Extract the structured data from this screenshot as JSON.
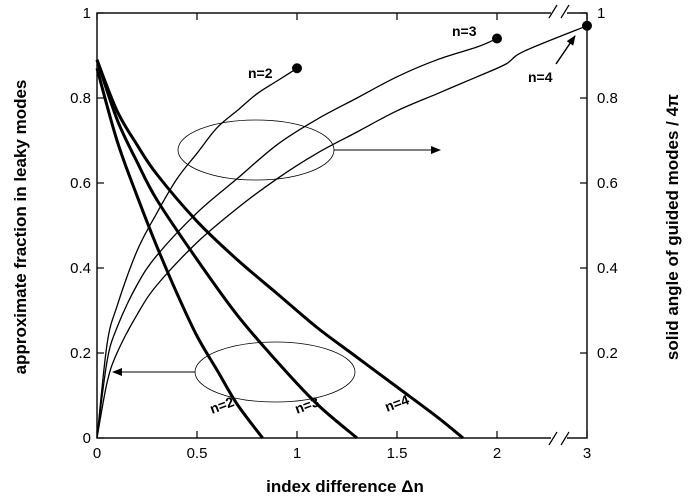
{
  "chart_data": {
    "type": "line",
    "xlabel": "index difference Δn",
    "ylabel_left": "approximate fraction in leaky modes",
    "ylabel_right": "solid angle of guided modes / 4π",
    "xlim": [
      0,
      3
    ],
    "ylim": [
      0,
      1
    ],
    "axis_break_x": [
      2.35,
      2.7
    ],
    "x_ticks": [
      "0",
      "0.5",
      "1",
      "1.5",
      "2",
      "3"
    ],
    "y_ticks_left": [
      "0",
      "0.2",
      "0.4",
      "0.6",
      "0.8",
      "1"
    ],
    "y_ticks_right": [
      "0.2",
      "0.4",
      "0.6",
      "0.8",
      "1"
    ],
    "grid": false,
    "legend": "none",
    "leaky_series": [
      {
        "name": "n=2",
        "x": [
          0,
          0.1,
          0.2,
          0.3,
          0.4,
          0.5,
          0.6,
          0.7,
          0.828
        ],
        "y": [
          0.87,
          0.7,
          0.57,
          0.45,
          0.34,
          0.24,
          0.16,
          0.08,
          0.0
        ]
      },
      {
        "name": "n=3",
        "x": [
          0,
          0.1,
          0.2,
          0.3,
          0.5,
          0.7,
          0.9,
          1.1,
          1.3
        ],
        "y": [
          0.89,
          0.75,
          0.65,
          0.56,
          0.42,
          0.29,
          0.18,
          0.08,
          0.0
        ]
      },
      {
        "name": "n=4",
        "x": [
          0,
          0.1,
          0.2,
          0.3,
          0.5,
          0.7,
          0.9,
          1.1,
          1.3,
          1.5,
          1.7,
          1.83
        ],
        "y": [
          0.89,
          0.77,
          0.69,
          0.62,
          0.51,
          0.42,
          0.34,
          0.26,
          0.19,
          0.12,
          0.05,
          0.0
        ]
      }
    ],
    "solid_angle_series": [
      {
        "name": "n=2",
        "x": [
          0,
          0.05,
          0.1,
          0.2,
          0.3,
          0.4,
          0.5,
          0.6,
          0.7,
          0.8,
          0.9,
          1.0
        ],
        "y": [
          0.0,
          0.22,
          0.31,
          0.44,
          0.53,
          0.61,
          0.67,
          0.73,
          0.77,
          0.81,
          0.84,
          0.87
        ]
      },
      {
        "name": "n=3",
        "x": [
          0,
          0.05,
          0.1,
          0.2,
          0.3,
          0.5,
          0.7,
          0.9,
          1.1,
          1.3,
          1.5,
          1.7,
          1.9,
          2.0
        ],
        "y": [
          0.0,
          0.18,
          0.26,
          0.36,
          0.43,
          0.53,
          0.61,
          0.69,
          0.75,
          0.8,
          0.85,
          0.89,
          0.92,
          0.94
        ]
      },
      {
        "name": "n=4",
        "x": [
          0,
          0.05,
          0.1,
          0.2,
          0.3,
          0.5,
          0.7,
          0.9,
          1.1,
          1.3,
          1.5,
          1.7,
          1.9,
          2.1,
          2.3,
          3.0
        ],
        "y": [
          0.0,
          0.13,
          0.2,
          0.29,
          0.36,
          0.46,
          0.54,
          0.61,
          0.67,
          0.72,
          0.77,
          0.81,
          0.85,
          0.88,
          0.91,
          0.97
        ]
      }
    ],
    "endpoint_markers": [
      {
        "label": "n=2",
        "x": 1.0,
        "y": 0.87
      },
      {
        "label": "n=3",
        "x": 2.0,
        "y": 0.94
      },
      {
        "label": "n=4",
        "x": 3.0,
        "y": 0.97
      }
    ],
    "curve_labels": {
      "leaky": [
        "n=2",
        "n=3",
        "n=4"
      ],
      "solid": [
        "n=2",
        "n=3",
        "n=4"
      ]
    }
  }
}
